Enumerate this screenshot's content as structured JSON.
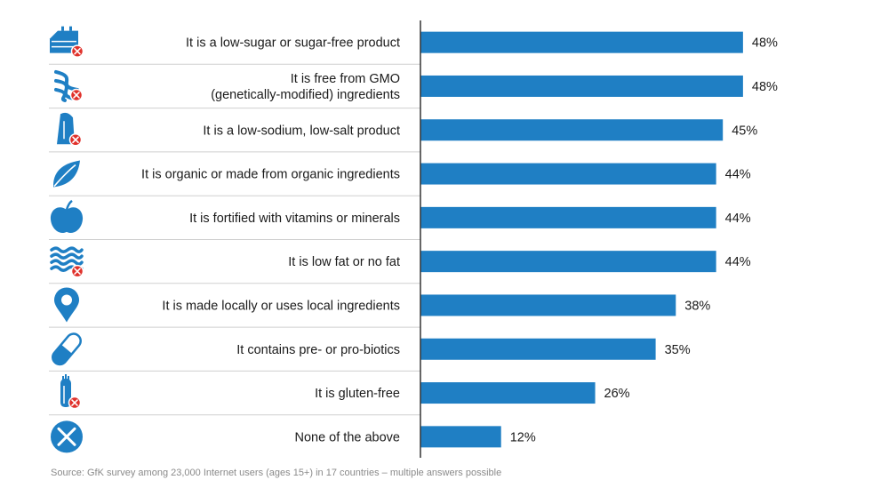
{
  "chart_data": {
    "type": "bar",
    "orientation": "horizontal",
    "categories": [
      [
        "It is a low-sugar or sugar-free product"
      ],
      [
        "It is free from GMO",
        "(genetically-modified) ingredients"
      ],
      [
        "It is a low-sodium, low-salt product"
      ],
      [
        "It is organic or made from organic ingredients"
      ],
      [
        "It is fortified with vitamins or minerals"
      ],
      [
        "It is low fat or no fat"
      ],
      [
        "It is made locally or uses local ingredients"
      ],
      [
        "It contains pre- or pro-biotics"
      ],
      [
        "It is gluten-free"
      ],
      [
        "None of the above"
      ]
    ],
    "values": [
      48,
      48,
      45,
      44,
      44,
      44,
      38,
      35,
      26,
      12
    ],
    "value_labels": [
      "48%",
      "48%",
      "45%",
      "44%",
      "44%",
      "44%",
      "38%",
      "35%",
      "26%",
      "12%"
    ],
    "icons": [
      "cake-no-icon",
      "dna-no-icon",
      "salt-shaker-no-icon",
      "leaf-icon",
      "apple-icon",
      "fat-strips-no-icon",
      "location-pin-icon",
      "capsule-icon",
      "wheat-no-icon",
      "x-circle-icon"
    ],
    "bar_color": "#1f7fc4",
    "icon_color": "#1f7fc4",
    "badge_color": "#e0312b",
    "grid": false,
    "legend": "none"
  },
  "source": "Source: GfK survey among 23,000 Internet users (ages 15+) in 17 countries – multiple  answers possible"
}
